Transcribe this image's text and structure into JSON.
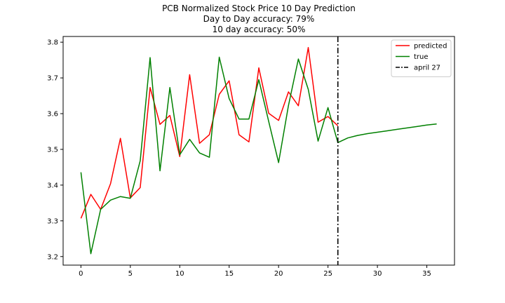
{
  "chart_data": {
    "type": "line",
    "title_lines": [
      "PCB Normalized Stock Price 10 Day Prediction",
      "Day to Day accuracy: 79%",
      "10 day accuracy: 50%"
    ],
    "xlabel": "",
    "ylabel": "",
    "xlim": [
      -1.8,
      37.8
    ],
    "ylim": [
      3.176,
      3.816
    ],
    "xticks": [
      0,
      5,
      10,
      15,
      20,
      25,
      30,
      35
    ],
    "yticks": [
      3.2,
      3.3,
      3.4,
      3.5,
      3.6,
      3.7,
      3.8
    ],
    "grid": false,
    "legend_position": "top-right",
    "series": [
      {
        "name": "predicted",
        "color": "#ff0000",
        "style": "solid",
        "x": [
          0,
          1,
          2,
          3,
          4,
          5,
          6,
          7,
          8,
          9,
          10,
          11,
          12,
          13,
          14,
          15,
          16,
          17,
          18,
          19,
          20,
          21,
          22,
          23,
          24,
          25,
          26
        ],
        "y": [
          3.307,
          3.374,
          3.332,
          3.404,
          3.531,
          3.364,
          3.393,
          3.673,
          3.57,
          3.595,
          3.48,
          3.709,
          3.517,
          3.541,
          3.654,
          3.692,
          3.541,
          3.521,
          3.728,
          3.601,
          3.581,
          3.661,
          3.622,
          3.785,
          3.576,
          3.592,
          3.566
        ]
      },
      {
        "name": "true",
        "color": "#008000",
        "style": "solid",
        "x": [
          0,
          1,
          2,
          3,
          4,
          5,
          6,
          7,
          8,
          9,
          10,
          11,
          12,
          13,
          14,
          15,
          16,
          17,
          18,
          19,
          20,
          21,
          22,
          23,
          24,
          25,
          26,
          27,
          28,
          29,
          30,
          31,
          32,
          33,
          34,
          35,
          36
        ],
        "y": [
          3.436,
          3.208,
          3.332,
          3.358,
          3.368,
          3.363,
          3.468,
          3.757,
          3.44,
          3.673,
          3.485,
          3.528,
          3.49,
          3.478,
          3.758,
          3.642,
          3.585,
          3.585,
          3.695,
          3.578,
          3.463,
          3.623,
          3.753,
          3.668,
          3.523,
          3.617,
          3.519,
          3.532,
          3.539,
          3.544,
          3.548,
          3.552,
          3.556,
          3.56,
          3.564,
          3.568,
          3.571
        ]
      },
      {
        "name": "april 27",
        "color": "#000000",
        "style": "dashdot",
        "vline_x": 26
      }
    ]
  }
}
